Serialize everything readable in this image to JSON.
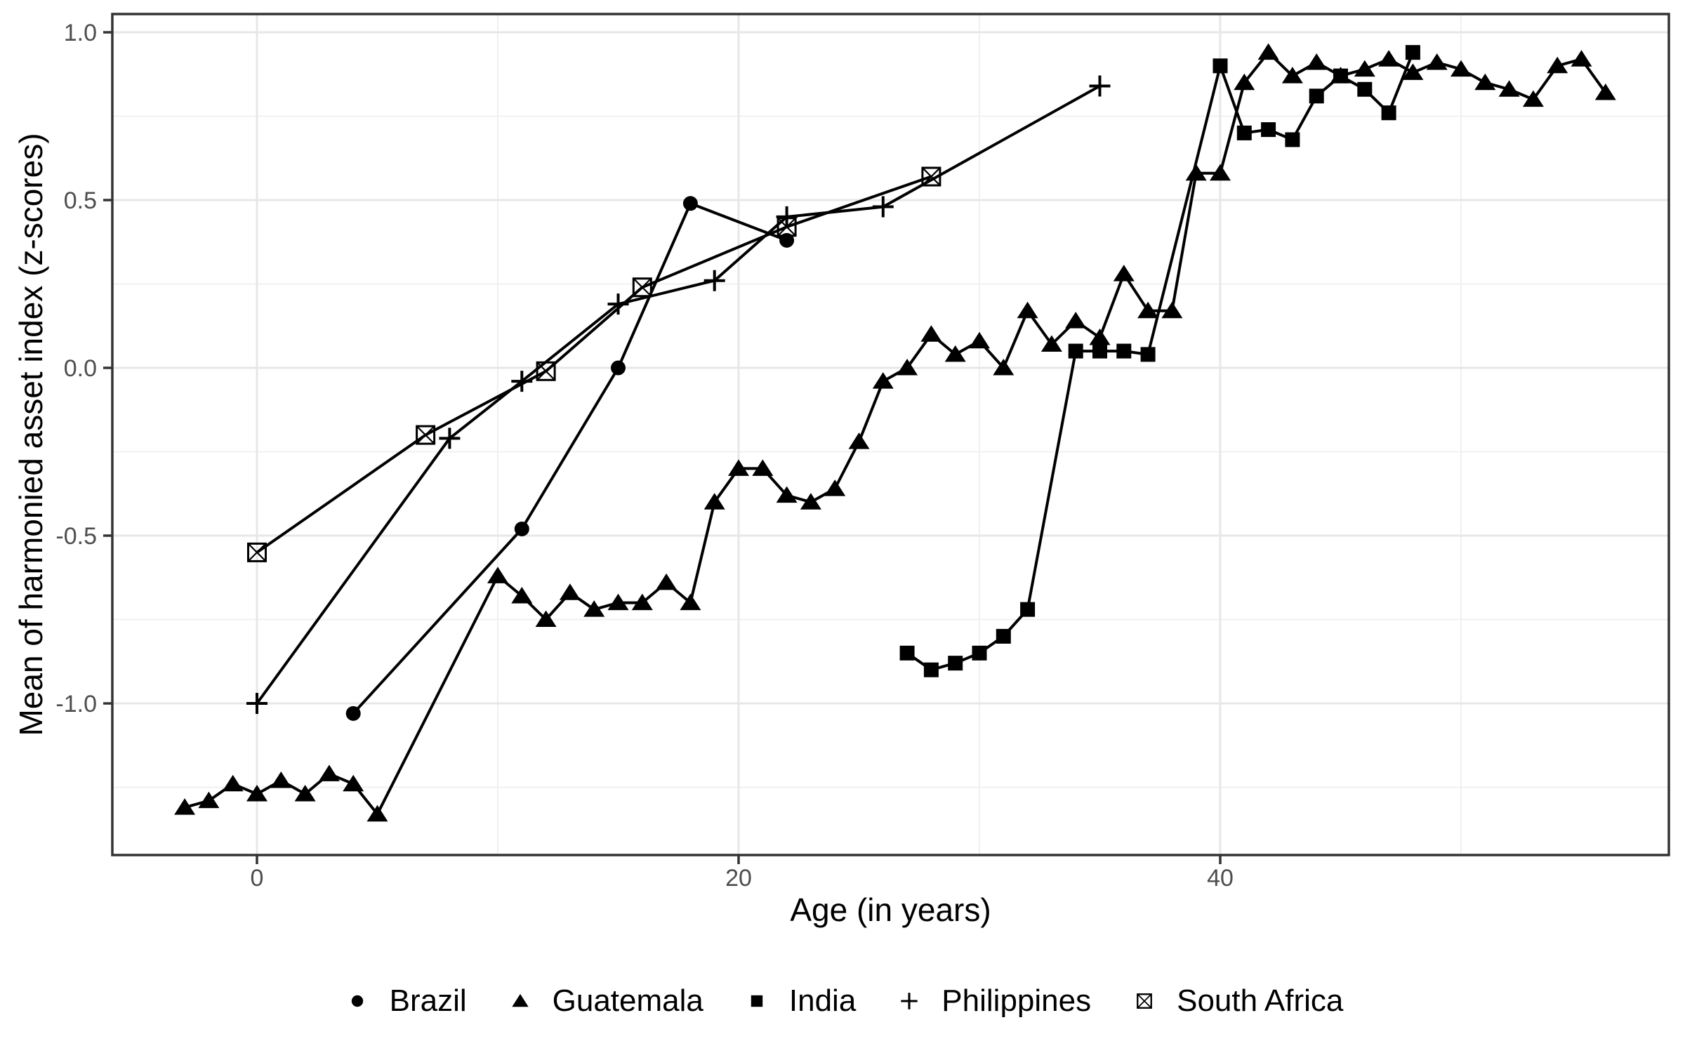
{
  "chart_data": {
    "type": "line",
    "title": "",
    "grid": "major+minor",
    "legend_position": "bottom",
    "colors": {
      "series": "#000000",
      "grid_major": "#e7e7e7",
      "grid_minor": "#f0f0f0",
      "panel_border": "#333333",
      "tick_mark": "#333333",
      "tick_label": "#4d4d4d",
      "background": "#ffffff"
    },
    "x_axis": {
      "title": "Age (in years)",
      "xlim": [
        -6,
        58.6
      ],
      "ticks": [
        {
          "v": 0,
          "label": "0"
        },
        {
          "v": 20,
          "label": "20"
        },
        {
          "v": 40,
          "label": "40"
        }
      ],
      "minor": [
        10,
        30,
        50
      ]
    },
    "y_axis": {
      "title": "Mean of harmonied asset index (z-scores)",
      "ylim": [
        -1.44,
        1.05
      ],
      "ticks": [
        {
          "v": 1.0,
          "label": "1.0"
        },
        {
          "v": 0.5,
          "label": "0.5"
        },
        {
          "v": 0.0,
          "label": "0.0"
        },
        {
          "v": -0.5,
          "label": "-0.5"
        },
        {
          "v": -1.0,
          "label": "-1.0"
        }
      ],
      "minor": [
        0.75,
        0.25,
        -0.25,
        -0.75,
        -1.25
      ]
    },
    "series": [
      {
        "name": "Brazil",
        "marker": "circle",
        "points": [
          [
            4,
            -1.03
          ],
          [
            11,
            -0.48
          ],
          [
            15,
            0.0
          ],
          [
            18,
            0.49
          ],
          [
            22,
            0.38
          ]
        ]
      },
      {
        "name": "Guatemala",
        "marker": "triangle",
        "points": [
          [
            -3,
            -1.31
          ],
          [
            -2,
            -1.29
          ],
          [
            -1,
            -1.24
          ],
          [
            0,
            -1.27
          ],
          [
            1,
            -1.23
          ],
          [
            2,
            -1.27
          ],
          [
            3,
            -1.21
          ],
          [
            4,
            -1.24
          ],
          [
            5,
            -1.33
          ],
          [
            10,
            -0.62
          ],
          [
            11,
            -0.68
          ],
          [
            12,
            -0.75
          ],
          [
            13,
            -0.67
          ],
          [
            14,
            -0.72
          ],
          [
            15,
            -0.7
          ],
          [
            16,
            -0.7
          ],
          [
            17,
            -0.64
          ],
          [
            18,
            -0.7
          ],
          [
            19,
            -0.4
          ],
          [
            20,
            -0.3
          ],
          [
            21,
            -0.3
          ],
          [
            22,
            -0.38
          ],
          [
            23,
            -0.4
          ],
          [
            24,
            -0.36
          ],
          [
            25,
            -0.22
          ],
          [
            26,
            -0.04
          ],
          [
            27,
            0.0
          ],
          [
            28,
            0.1
          ],
          [
            29,
            0.04
          ],
          [
            30,
            0.08
          ],
          [
            31,
            0.0
          ],
          [
            32,
            0.17
          ],
          [
            33,
            0.07
          ],
          [
            34,
            0.14
          ],
          [
            35,
            0.09
          ],
          [
            36,
            0.28
          ],
          [
            37,
            0.17
          ],
          [
            38,
            0.17
          ],
          [
            39,
            0.58
          ],
          [
            40,
            0.58
          ],
          [
            41,
            0.85
          ],
          [
            42,
            0.94
          ],
          [
            43,
            0.87
          ],
          [
            44,
            0.91
          ],
          [
            45,
            0.87
          ],
          [
            46,
            0.89
          ],
          [
            47,
            0.92
          ],
          [
            48,
            0.88
          ],
          [
            49,
            0.91
          ],
          [
            50,
            0.89
          ],
          [
            51,
            0.85
          ],
          [
            52,
            0.83
          ],
          [
            53,
            0.8
          ],
          [
            54,
            0.9
          ],
          [
            55,
            0.92
          ],
          [
            56,
            0.82
          ]
        ]
      },
      {
        "name": "India",
        "marker": "square",
        "points": [
          [
            27,
            -0.85
          ],
          [
            28,
            -0.9
          ],
          [
            29,
            -0.88
          ],
          [
            30,
            -0.85
          ],
          [
            31,
            -0.8
          ],
          [
            32,
            -0.72
          ],
          [
            34,
            0.05
          ],
          [
            35,
            0.05
          ],
          [
            36,
            0.05
          ],
          [
            37,
            0.04
          ],
          [
            40,
            0.9
          ],
          [
            41,
            0.7
          ],
          [
            42,
            0.71
          ],
          [
            43,
            0.68
          ],
          [
            44,
            0.81
          ],
          [
            45,
            0.87
          ],
          [
            46,
            0.83
          ],
          [
            47,
            0.76
          ],
          [
            48,
            0.94
          ]
        ]
      },
      {
        "name": "Philippines",
        "marker": "plus",
        "points": [
          [
            0,
            -1.0
          ],
          [
            8,
            -0.21
          ],
          [
            11,
            -0.04
          ],
          [
            15,
            0.19
          ],
          [
            19,
            0.26
          ],
          [
            22,
            0.45
          ],
          [
            26,
            0.48
          ],
          [
            35,
            0.84
          ]
        ]
      },
      {
        "name": "South Africa",
        "marker": "boxed-x",
        "points": [
          [
            0,
            -0.55
          ],
          [
            7,
            -0.2
          ],
          [
            12,
            -0.01
          ],
          [
            16,
            0.24
          ],
          [
            22,
            0.42
          ],
          [
            28,
            0.57
          ]
        ]
      }
    ]
  }
}
